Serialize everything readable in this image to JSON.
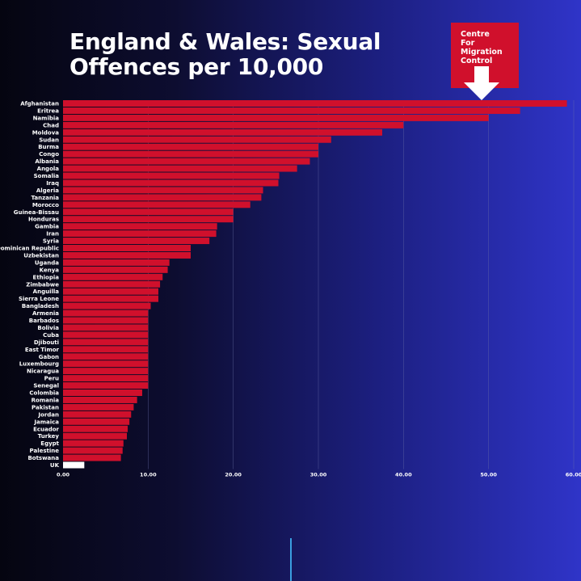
{
  "title_lines": [
    "England & Wales: Sexual",
    "Offences per 10,000"
  ],
  "logo": {
    "lines": [
      "Centre",
      "For",
      "Migration",
      "Control"
    ],
    "icon": "down-arrow-icon",
    "color": "#d0102c"
  },
  "colors": {
    "bar": "#d0102c",
    "uk_bar": "#ffffff",
    "grid": "#6a6fa8"
  },
  "chart_data": {
    "type": "bar",
    "orientation": "horizontal",
    "title": "England & Wales: Sexual Offences per 10,000",
    "categories": [
      "Afghanistan",
      "Eritrea",
      "Namibia",
      "Chad",
      "Moldova",
      "Sudan",
      "Burma",
      "Congo",
      "Albania",
      "Angola",
      "Somalia",
      "Iraq",
      "Algeria",
      "Tanzania",
      "Morocco",
      "Guinea-Bissau",
      "Honduras",
      "Gambia",
      "Iran",
      "Syria",
      "Dominican Republic",
      "Uzbekistan",
      "Uganda",
      "Kenya",
      "Ethiopia",
      "Zimbabwe",
      "Anguilla",
      "Sierra Leone",
      "Bangladesh",
      "Armenia",
      "Barbados",
      "Bolivia",
      "Cuba",
      "Djibouti",
      "East Timor",
      "Gabon",
      "Luxembourg",
      "Nicaragua",
      "Peru",
      "Senegal",
      "Colombia",
      "Romania",
      "Pakistan",
      "Jordan",
      "Jamaica",
      "Ecuador",
      "Turkey",
      "Egypt",
      "Palestine",
      "Botswana",
      "UK"
    ],
    "values": [
      59.2,
      53.7,
      50.0,
      40.0,
      37.5,
      31.5,
      30.0,
      30.0,
      29.0,
      27.5,
      25.4,
      25.3,
      23.5,
      23.3,
      22.0,
      20.0,
      20.0,
      18.1,
      18.0,
      17.2,
      15.0,
      15.0,
      12.5,
      12.3,
      11.7,
      11.4,
      11.2,
      11.2,
      10.3,
      10.0,
      10.0,
      10.0,
      10.0,
      10.0,
      10.0,
      10.0,
      10.0,
      10.0,
      10.0,
      10.0,
      9.3,
      8.7,
      8.3,
      8.0,
      7.8,
      7.6,
      7.5,
      7.1,
      7.0,
      6.8,
      2.5
    ],
    "highlight": "UK",
    "xlim": [
      0,
      60
    ],
    "xticks": [
      "0.00",
      "10.00",
      "20.00",
      "30.00",
      "40.00",
      "50.00",
      "60.00"
    ],
    "grid": true,
    "xlabel": "",
    "ylabel": ""
  }
}
